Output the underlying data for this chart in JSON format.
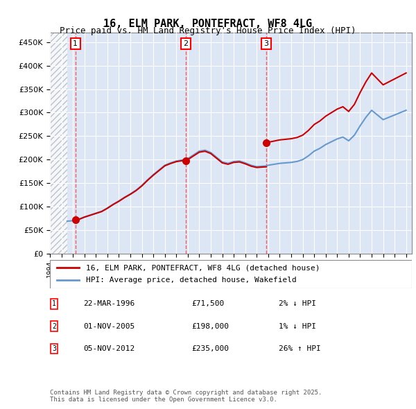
{
  "title": "16, ELM PARK, PONTEFRACT, WF8 4LG",
  "subtitle": "Price paid vs. HM Land Registry's House Price Index (HPI)",
  "legend_line1": "16, ELM PARK, PONTEFRACT, WF8 4LG (detached house)",
  "legend_line2": "HPI: Average price, detached house, Wakefield",
  "footnote": "Contains HM Land Registry data © Crown copyright and database right 2025.\nThis data is licensed under the Open Government Licence v3.0.",
  "transactions": [
    {
      "num": 1,
      "date": "22-MAR-1996",
      "price": 71500,
      "pct": "2% ↓ HPI",
      "year": 1996.22
    },
    {
      "num": 2,
      "date": "01-NOV-2005",
      "price": 198000,
      "pct": "1% ↓ HPI",
      "year": 2005.83
    },
    {
      "num": 3,
      "date": "05-NOV-2012",
      "price": 235000,
      "pct": "26% ↑ HPI",
      "year": 2012.83
    }
  ],
  "xmin": 1994,
  "xmax": 2025.5,
  "ymin": 0,
  "ymax": 470000,
  "yticks": [
    0,
    50000,
    100000,
    150000,
    200000,
    250000,
    300000,
    350000,
    400000,
    450000
  ],
  "ytick_labels": [
    "£0",
    "£50K",
    "£100K",
    "£150K",
    "£200K",
    "£250K",
    "£300K",
    "£350K",
    "£400K",
    "£450K"
  ],
  "bg_hatch_color": "#cccccc",
  "plot_bg_color": "#dce6f5",
  "grid_color": "#ffffff",
  "line_color_red": "#cc0000",
  "line_color_blue": "#6699cc",
  "hatch_region_end": 1995.5
}
